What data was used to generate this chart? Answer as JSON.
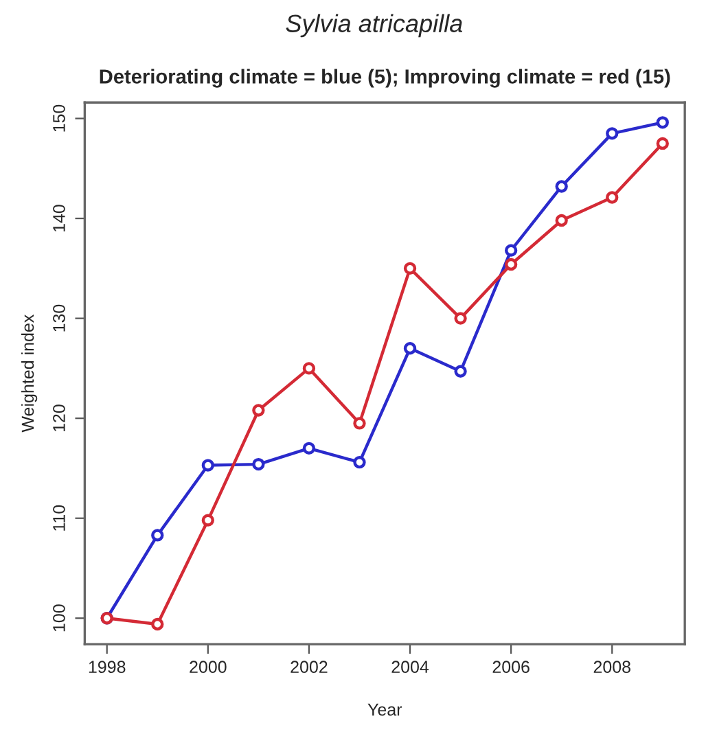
{
  "chart_data": {
    "type": "line",
    "title": "Sylvia atricapilla",
    "subtitle": "Deteriorating climate = blue (5); Improving climate = red (15)",
    "xlabel": "Year",
    "ylabel": "Weighted index",
    "x": [
      1998,
      1999,
      2000,
      2001,
      2002,
      2003,
      2004,
      2005,
      2006,
      2007,
      2008,
      2009
    ],
    "series": [
      {
        "color": "#2a2acc",
        "values": [
          100,
          108.3,
          115.3,
          115.4,
          117,
          115.6,
          127,
          124.7,
          136.8,
          143.2,
          148.5,
          149.6
        ]
      },
      {
        "color": "#d42a35",
        "values": [
          100,
          99.4,
          109.8,
          120.8,
          125,
          119.5,
          135,
          130,
          135.4,
          139.8,
          142.1,
          147.5
        ]
      }
    ],
    "xlim": [
      1997.56,
      2009.44
    ],
    "ylim": [
      97.4,
      151.6
    ],
    "xticks": [
      1998,
      2000,
      2002,
      2004,
      2006,
      2008
    ],
    "yticks": [
      100,
      110,
      120,
      130,
      140,
      150
    ],
    "marker": "circle",
    "line_style": "solid",
    "grid": false
  }
}
